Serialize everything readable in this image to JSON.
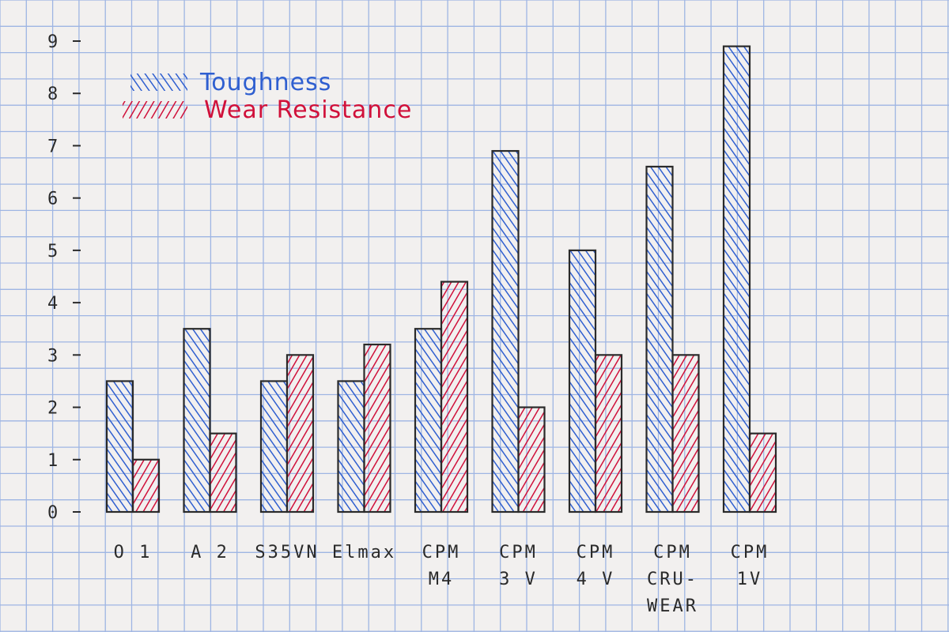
{
  "chart_data": {
    "type": "bar",
    "title": "",
    "xlabel": "",
    "ylabel": "",
    "ylim": [
      0,
      9
    ],
    "yticks": [
      "0",
      "1",
      "2",
      "3",
      "4",
      "5",
      "6",
      "7",
      "8",
      "9"
    ],
    "categories": [
      {
        "line1": "O 1",
        "line2": "",
        "line3": ""
      },
      {
        "line1": "A 2",
        "line2": "",
        "line3": ""
      },
      {
        "line1": "S35VN",
        "line2": "",
        "line3": ""
      },
      {
        "line1": "Elmax",
        "line2": "",
        "line3": ""
      },
      {
        "line1": "CPM",
        "line2": "M4",
        "line3": ""
      },
      {
        "line1": "CPM",
        "line2": "3 V",
        "line3": ""
      },
      {
        "line1": "CPM",
        "line2": "4 V",
        "line3": ""
      },
      {
        "line1": "CPM",
        "line2": "CRU-",
        "line3": "WEAR"
      },
      {
        "line1": "CPM",
        "line2": "1V",
        "line3": ""
      }
    ],
    "series": [
      {
        "name": "Toughness",
        "color": "#2f5fd0",
        "values": [
          2.5,
          3.5,
          2.5,
          2.5,
          3.5,
          6.9,
          5.0,
          6.6,
          8.9
        ]
      },
      {
        "name": "Wear Resistance",
        "color": "#d0103a",
        "values": [
          1.0,
          1.5,
          3.0,
          3.2,
          4.4,
          2.0,
          3.0,
          3.0,
          1.5
        ]
      }
    ],
    "grid": true,
    "legend": "top-left"
  },
  "colors": {
    "paper": "#f2f0ef",
    "grid": "#9eb5e3",
    "ink": "#2a2a2a"
  }
}
